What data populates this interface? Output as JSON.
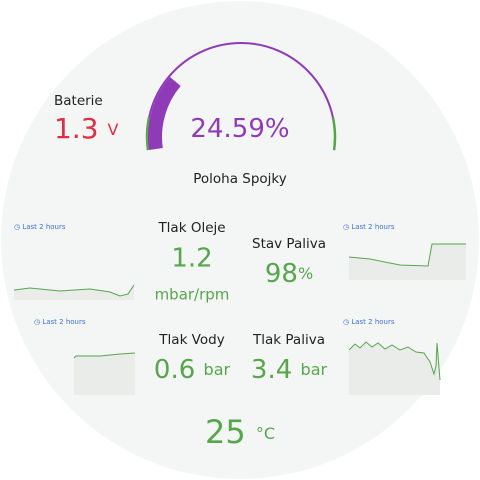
{
  "battery": {
    "label": "Baterie",
    "value": 1.3,
    "unit": "V"
  },
  "gauge": {
    "label": "Poloha Spojky",
    "value": 24.59,
    "unit": "%"
  },
  "panels": [
    {
      "label": "Tlak Oleje",
      "value": 1.2,
      "unit": "mbar/rpm"
    },
    {
      "label": "Stav Paliva",
      "value": 98,
      "unit": "%"
    },
    {
      "label": "Tlak Vody",
      "value": 0.6,
      "unit": "bar"
    },
    {
      "label": "Tlak Paliva",
      "value": 3.4,
      "unit": "bar"
    }
  ],
  "temperature": {
    "value": 25,
    "unit": "°C"
  },
  "time_range_labels": [
    "Last 2 hours",
    "Last 2 hours",
    "Last 2 hours",
    "Last 2 hours"
  ]
}
